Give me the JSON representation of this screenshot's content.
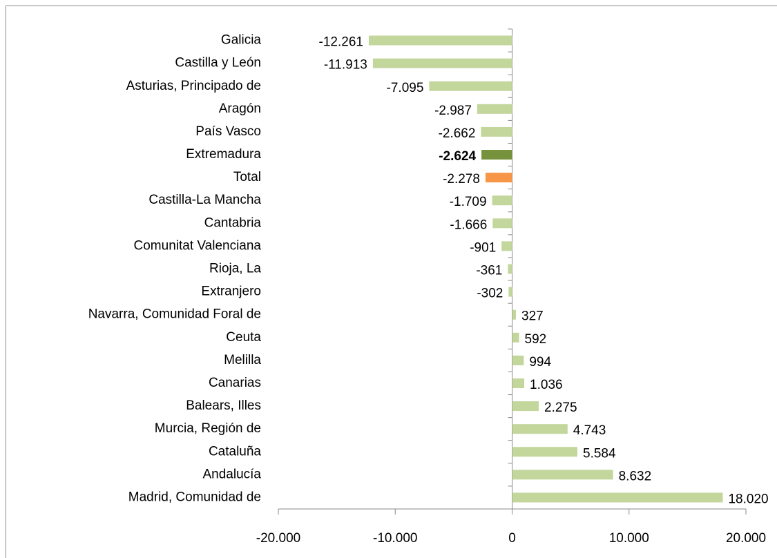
{
  "chart_data": {
    "type": "hbar",
    "categories": [
      "Galicia",
      "Castilla y León",
      "Asturias, Principado de",
      "Aragón",
      "País Vasco",
      "Extremadura",
      "Total",
      "Castilla-La Mancha",
      "Cantabria",
      "Comunitat Valenciana",
      "Rioja, La",
      "Extranjero",
      "Navarra, Comunidad  Foral de",
      "Ceuta",
      "Melilla",
      "Canarias",
      "Balears, Illes",
      "Murcia, Región de",
      "Cataluña",
      "Andalucía",
      "Madrid, Comunidad de"
    ],
    "values": [
      -12261,
      -11913,
      -7095,
      -2987,
      -2662,
      -2624,
      -2278,
      -1709,
      -1666,
      -901,
      -361,
      -302,
      327,
      592,
      994,
      1036,
      2275,
      4743,
      5584,
      8632,
      18020
    ],
    "value_labels": [
      "-12.261",
      "-11.913",
      "-7.095",
      "-2.987",
      "-2.662",
      "-2.624",
      "-2.278",
      "-1.709",
      "-1.666",
      "-901",
      "-361",
      "-302",
      "327",
      "592",
      "994",
      "1.036",
      "2.275",
      "4.743",
      "5.584",
      "8.632",
      "18.020"
    ],
    "colors": [
      "#c3d69b",
      "#c3d69b",
      "#c3d69b",
      "#c3d69b",
      "#c3d69b",
      "#76923c",
      "#f79646",
      "#c3d69b",
      "#c3d69b",
      "#c3d69b",
      "#c3d69b",
      "#c3d69b",
      "#c3d69b",
      "#c3d69b",
      "#c3d69b",
      "#c3d69b",
      "#c3d69b",
      "#c3d69b",
      "#c3d69b",
      "#c3d69b",
      "#c3d69b"
    ],
    "bold_labels": [
      false,
      false,
      false,
      false,
      false,
      true,
      false,
      false,
      false,
      false,
      false,
      false,
      false,
      false,
      false,
      false,
      false,
      false,
      false,
      false,
      false
    ],
    "xlim": [
      -20000,
      20000
    ],
    "xticks": [
      {
        "value": -20000,
        "label": "-20.000"
      },
      {
        "value": -10000,
        "label": "-10.000"
      },
      0,
      {
        "value": 10000,
        "label": "10.000"
      },
      {
        "value": 20000,
        "label": "20.000"
      }
    ]
  }
}
